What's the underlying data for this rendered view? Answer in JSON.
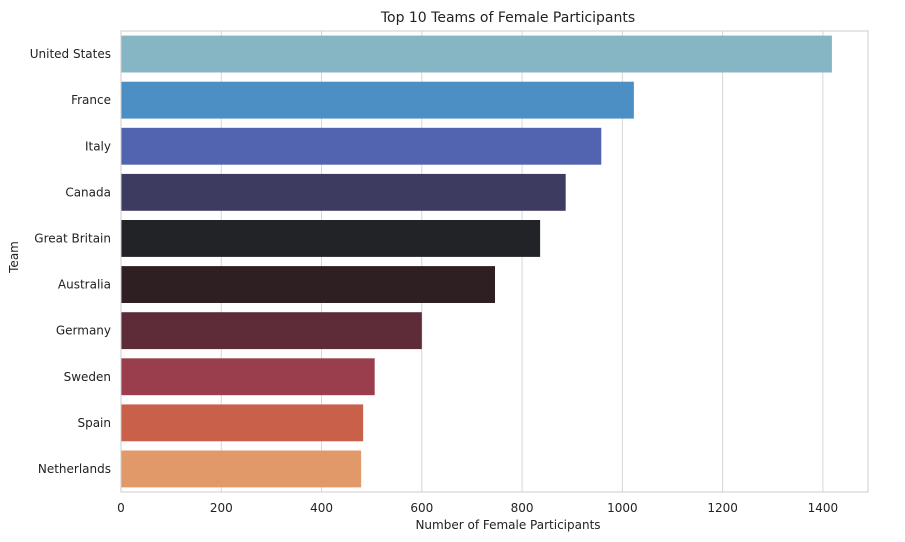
{
  "chart_data": {
    "type": "bar",
    "orientation": "horizontal",
    "title": "Top 10 Teams of Female Participants",
    "xlabel": "Number of Female Participants",
    "ylabel": "Team",
    "xlim": [
      0,
      1490
    ],
    "xticks": [
      0,
      200,
      400,
      600,
      800,
      1000,
      1200,
      1400
    ],
    "grid": true,
    "categories": [
      "United States",
      "France",
      "Italy",
      "Canada",
      "Great Britain",
      "Australia",
      "Germany",
      "Sweden",
      "Spain",
      "Netherlands"
    ],
    "values": [
      1418,
      1023,
      958,
      887,
      836,
      746,
      600,
      506,
      483,
      479
    ],
    "colors": [
      "#86b6c4",
      "#4b8fc5",
      "#5263b0",
      "#3e3b60",
      "#222327",
      "#2e1f22",
      "#5e2c38",
      "#9a3d4c",
      "#c9614a",
      "#e2996a"
    ]
  }
}
